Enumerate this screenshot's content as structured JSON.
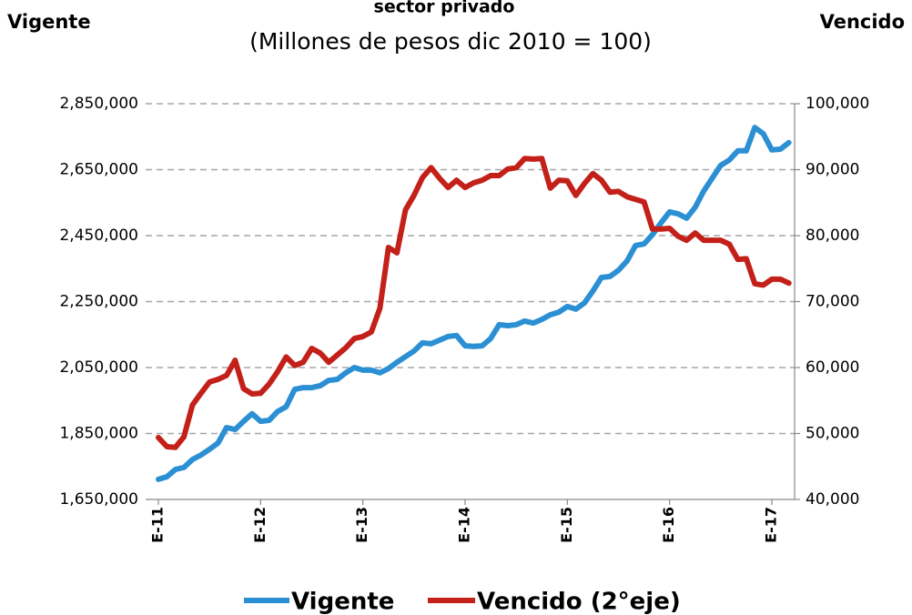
{
  "chart_data": {
    "type": "line",
    "title": "sector privado",
    "subtitle": "(Millones de pesos dic 2010 = 100)",
    "ylabel": "Vigente",
    "y2label": "Vencido",
    "categories": [
      "E-11",
      null,
      null,
      null,
      null,
      null,
      null,
      null,
      null,
      null,
      null,
      null,
      "E-12",
      null,
      null,
      null,
      null,
      null,
      null,
      null,
      null,
      null,
      null,
      null,
      "E-13",
      null,
      null,
      null,
      null,
      null,
      null,
      null,
      null,
      null,
      null,
      null,
      "E-14",
      null,
      null,
      null,
      null,
      null,
      null,
      null,
      null,
      null,
      null,
      null,
      "E-15",
      null,
      null,
      null,
      null,
      null,
      null,
      null,
      null,
      null,
      null,
      null,
      "E-16",
      null,
      null,
      null,
      null,
      null,
      null,
      null,
      null,
      null,
      null,
      null,
      "E-17",
      null,
      null
    ],
    "series": [
      {
        "name": "Vigente",
        "color": "#2b8fd3",
        "axis": "y",
        "values": [
          1711000,
          1719000,
          1741000,
          1747000,
          1771000,
          1785000,
          1802000,
          1821000,
          1868000,
          1862000,
          1887000,
          1910000,
          1887000,
          1890000,
          1917000,
          1931000,
          1984000,
          1989000,
          1989000,
          1995000,
          2011000,
          2014000,
          2034000,
          2050000,
          2042000,
          2042000,
          2034000,
          2047000,
          2066000,
          2083000,
          2100000,
          2125000,
          2122000,
          2133000,
          2144000,
          2147000,
          2116000,
          2114000,
          2116000,
          2138000,
          2180000,
          2177000,
          2180000,
          2191000,
          2185000,
          2196000,
          2210000,
          2218000,
          2235000,
          2227000,
          2246000,
          2282000,
          2323000,
          2326000,
          2345000,
          2373000,
          2420000,
          2425000,
          2453000,
          2489000,
          2522000,
          2516000,
          2503000,
          2536000,
          2585000,
          2624000,
          2663000,
          2679000,
          2707000,
          2707000,
          2778000,
          2759000,
          2710000,
          2712000,
          2732000
        ]
      },
      {
        "name": "Vencido (2°eje)",
        "color": "#c3201a",
        "axis": "y2",
        "values": [
          49400,
          48000,
          47900,
          49500,
          54300,
          56100,
          57800,
          58200,
          58800,
          61100,
          56800,
          56000,
          56100,
          57500,
          59400,
          61600,
          60300,
          60800,
          62900,
          62200,
          60800,
          61900,
          63000,
          64400,
          64700,
          65400,
          69000,
          78200,
          77400,
          83900,
          86100,
          88800,
          90300,
          88700,
          87300,
          88400,
          87300,
          88000,
          88400,
          89100,
          89100,
          90100,
          90300,
          91700,
          91600,
          91700,
          87200,
          88400,
          88300,
          86100,
          87900,
          89400,
          88400,
          86600,
          86700,
          85900,
          85500,
          85100,
          81000,
          81000,
          81100,
          79900,
          79300,
          80400,
          79300,
          79300,
          79300,
          78700,
          76400,
          76500,
          72700,
          72500,
          73400,
          73400,
          72800
        ]
      }
    ],
    "ylim": [
      1650000,
      2850000
    ],
    "yticks": [
      {
        "value": 1650000,
        "label": "1,650,000"
      },
      {
        "value": 1850000,
        "label": "1,850,000"
      },
      {
        "value": 2050000,
        "label": "2,050,000"
      },
      {
        "value": 2250000,
        "label": "2,250,000"
      },
      {
        "value": 2450000,
        "label": "2,450,000"
      },
      {
        "value": 2650000,
        "label": "2,650,000"
      },
      {
        "value": 2850000,
        "label": "2,850,000"
      }
    ],
    "y2lim": [
      40000,
      100000
    ],
    "y2ticks": [
      {
        "value": 40000,
        "label": "40,000"
      },
      {
        "value": 50000,
        "label": "50,000"
      },
      {
        "value": 60000,
        "label": "60,000"
      },
      {
        "value": 70000,
        "label": "70,000"
      },
      {
        "value": 80000,
        "label": "80,000"
      },
      {
        "value": 90000,
        "label": "90,000"
      },
      {
        "value": 100000,
        "label": "100,000"
      }
    ],
    "grid": true,
    "legend": "bottom"
  }
}
